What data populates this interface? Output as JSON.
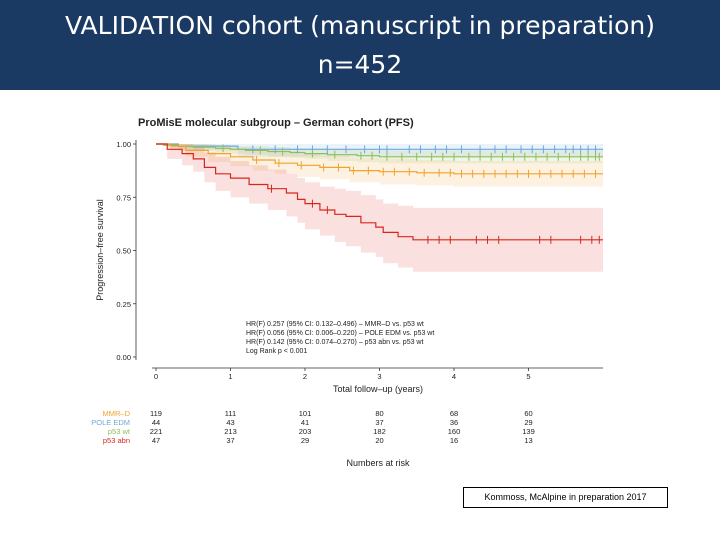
{
  "slide": {
    "title_line1": "VALIDATION cohort (manuscript in preparation)",
    "title_line2": "n=452",
    "citation": "Kommoss, McAlpine in preparation 2017"
  },
  "colors": {
    "header_bg": "#1b3a63",
    "MMR-D": "#f2a32a",
    "POLE EDM": "#6fa8dc",
    "p53 wt": "#8fbf5a",
    "p53 abn": "#d9261c"
  },
  "chart_data": {
    "type": "line",
    "title": "ProMisE molecular subgroup – German cohort (PFS)",
    "xlabel": "Total follow–up (years)",
    "ylabel": "Progression–free survival",
    "xlim": [
      0,
      6
    ],
    "ylim": [
      0,
      1
    ],
    "x_ticks": [
      "0",
      "1",
      "2",
      "3",
      "4",
      "5"
    ],
    "y_ticks": [
      "0.00",
      "0.25",
      "0.50",
      "0.75",
      "1.00"
    ],
    "grid": false,
    "annotations": [
      "HR(F) 0.257 (95% CI: 0.132–0.496) – MMR–D vs. p53 wt",
      "HR(F) 0.056 (95% CI: 0.006–0.220) – POLE EDM vs. p53 wt",
      "HR(F) 0.142 (95% CI: 0.074–0.270) – p53 abn vs. p53 wt",
      "Log Rank p < 0.001"
    ],
    "series": [
      {
        "name": "POLE EDM",
        "color": "#6fa8dc",
        "x": [
          0,
          0.3,
          1.1,
          6
        ],
        "y": [
          1.0,
          0.99,
          0.975,
          0.975
        ],
        "ci_lower": [
          1.0,
          0.97,
          0.94,
          0.94
        ],
        "ci_upper": [
          1.0,
          1.0,
          1.0,
          1.0
        ],
        "censor_x": [
          1.3,
          1.6,
          1.9,
          2.1,
          2.3,
          2.55,
          2.8,
          3.0,
          3.1,
          3.4,
          3.55,
          3.75,
          3.9,
          4.1,
          4.35,
          4.55,
          4.7,
          4.9,
          5.05,
          5.2,
          5.35,
          5.5,
          5.6,
          5.7,
          5.8,
          5.9
        ]
      },
      {
        "name": "p53 wt",
        "color": "#8fbf5a",
        "x": [
          0,
          0.1,
          0.3,
          0.5,
          0.8,
          1.0,
          1.2,
          1.5,
          1.8,
          2.0,
          2.3,
          2.7,
          3.0,
          6
        ],
        "y": [
          1.0,
          0.995,
          0.99,
          0.985,
          0.98,
          0.975,
          0.97,
          0.965,
          0.96,
          0.955,
          0.95,
          0.945,
          0.94,
          0.94
        ],
        "ci_lower": [
          1.0,
          0.99,
          0.98,
          0.97,
          0.96,
          0.955,
          0.95,
          0.94,
          0.935,
          0.93,
          0.92,
          0.915,
          0.91,
          0.91
        ],
        "ci_upper": [
          1.0,
          1.0,
          1.0,
          1.0,
          0.995,
          0.99,
          0.99,
          0.985,
          0.98,
          0.98,
          0.975,
          0.97,
          0.97,
          0.97
        ],
        "censor_x": [
          0.9,
          1.4,
          1.7,
          2.1,
          2.4,
          2.75,
          2.9,
          3.1,
          3.3,
          3.5,
          3.7,
          3.85,
          4.0,
          4.2,
          4.35,
          4.5,
          4.65,
          4.8,
          4.95,
          5.1,
          5.25,
          5.4,
          5.55,
          5.7,
          5.8,
          5.9,
          5.95
        ]
      },
      {
        "name": "MMR-D",
        "color": "#f2a32a",
        "x": [
          0,
          0.2,
          0.4,
          0.7,
          1.0,
          1.3,
          1.6,
          1.9,
          2.2,
          2.6,
          3.0,
          3.5,
          4.0,
          6
        ],
        "y": [
          1.0,
          0.99,
          0.97,
          0.955,
          0.94,
          0.925,
          0.91,
          0.9,
          0.89,
          0.875,
          0.87,
          0.865,
          0.86,
          0.86
        ],
        "ci_lower": [
          1.0,
          0.97,
          0.94,
          0.915,
          0.895,
          0.875,
          0.86,
          0.845,
          0.835,
          0.82,
          0.81,
          0.805,
          0.8,
          0.8
        ],
        "ci_upper": [
          1.0,
          1.0,
          1.0,
          0.995,
          0.985,
          0.975,
          0.965,
          0.955,
          0.945,
          0.935,
          0.93,
          0.925,
          0.92,
          0.92
        ],
        "censor_x": [
          1.35,
          1.65,
          1.95,
          2.25,
          2.45,
          2.65,
          2.85,
          3.05,
          3.2,
          3.4,
          3.6,
          3.8,
          3.95,
          4.1,
          4.25,
          4.4,
          4.55,
          4.7,
          4.85,
          5.0,
          5.15,
          5.3,
          5.45,
          5.6,
          5.75,
          5.9
        ]
      },
      {
        "name": "p53 abn",
        "color": "#d9261c",
        "x": [
          0,
          0.15,
          0.35,
          0.5,
          0.65,
          0.8,
          1.0,
          1.25,
          1.5,
          1.75,
          1.9,
          2.0,
          2.2,
          2.4,
          2.55,
          2.75,
          2.95,
          3.05,
          3.25,
          3.45,
          6
        ],
        "y": [
          1.0,
          0.975,
          0.955,
          0.93,
          0.89,
          0.86,
          0.84,
          0.81,
          0.79,
          0.77,
          0.74,
          0.72,
          0.69,
          0.67,
          0.66,
          0.63,
          0.61,
          0.585,
          0.565,
          0.55,
          0.55
        ],
        "ci_lower": [
          1.0,
          0.93,
          0.9,
          0.87,
          0.82,
          0.78,
          0.75,
          0.72,
          0.69,
          0.66,
          0.63,
          0.6,
          0.57,
          0.54,
          0.52,
          0.49,
          0.47,
          0.44,
          0.42,
          0.4,
          0.4
        ],
        "ci_upper": [
          1.0,
          1.0,
          1.0,
          0.99,
          0.96,
          0.94,
          0.92,
          0.9,
          0.88,
          0.86,
          0.84,
          0.82,
          0.8,
          0.79,
          0.78,
          0.76,
          0.74,
          0.72,
          0.71,
          0.7,
          0.7
        ],
        "censor_x": [
          1.55,
          2.1,
          2.3,
          3.65,
          3.8,
          3.95,
          4.3,
          4.45,
          4.6,
          5.15,
          5.3,
          5.7,
          5.85,
          5.95
        ]
      }
    ],
    "risk_table": {
      "title": "Numbers at risk",
      "times": [
        0,
        1,
        2,
        3,
        4,
        5
      ],
      "rows": [
        {
          "label": "MMR–D",
          "color": "#f2a32a",
          "values": [
            "119",
            "111",
            "101",
            "80",
            "68",
            "60"
          ]
        },
        {
          "label": "POLE EDM",
          "color": "#6fa8dc",
          "values": [
            "44",
            "43",
            "41",
            "37",
            "36",
            "29"
          ]
        },
        {
          "label": "p53 wt",
          "color": "#8fbf5a",
          "values": [
            "221",
            "213",
            "203",
            "182",
            "160",
            "139"
          ]
        },
        {
          "label": "p53 abn",
          "color": "#d9261c",
          "values": [
            "47",
            "37",
            "29",
            "20",
            "16",
            "13"
          ]
        }
      ]
    }
  }
}
